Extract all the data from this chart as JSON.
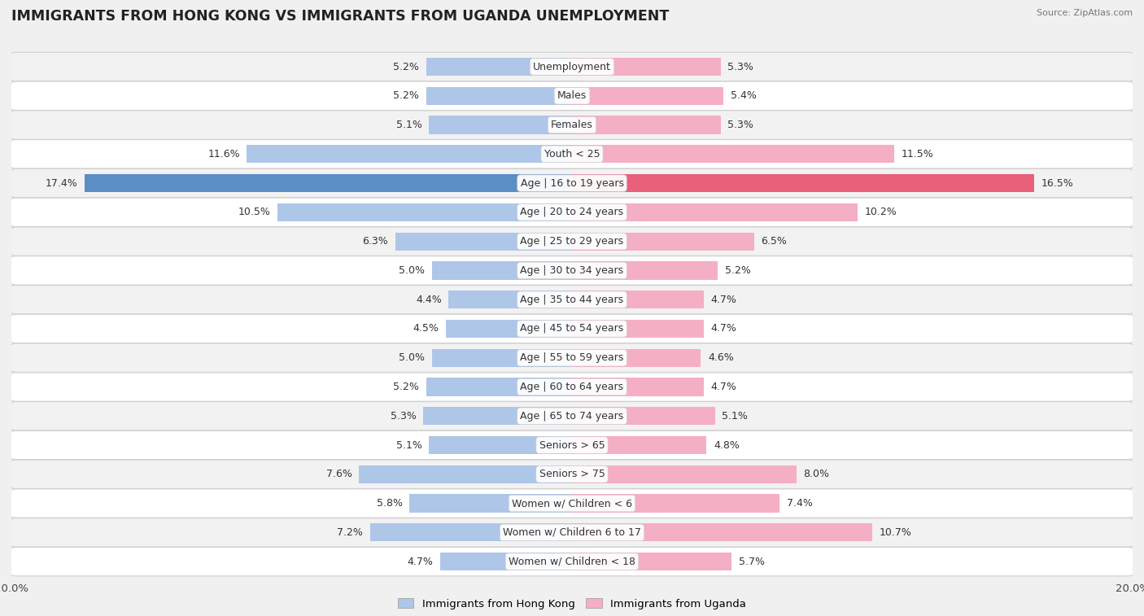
{
  "title": "IMMIGRANTS FROM HONG KONG VS IMMIGRANTS FROM UGANDA UNEMPLOYMENT",
  "source": "Source: ZipAtlas.com",
  "categories": [
    "Unemployment",
    "Males",
    "Females",
    "Youth < 25",
    "Age | 16 to 19 years",
    "Age | 20 to 24 years",
    "Age | 25 to 29 years",
    "Age | 30 to 34 years",
    "Age | 35 to 44 years",
    "Age | 45 to 54 years",
    "Age | 55 to 59 years",
    "Age | 60 to 64 years",
    "Age | 65 to 74 years",
    "Seniors > 65",
    "Seniors > 75",
    "Women w/ Children < 6",
    "Women w/ Children 6 to 17",
    "Women w/ Children < 18"
  ],
  "left_values": [
    5.2,
    5.2,
    5.1,
    11.6,
    17.4,
    10.5,
    6.3,
    5.0,
    4.4,
    4.5,
    5.0,
    5.2,
    5.3,
    5.1,
    7.6,
    5.8,
    7.2,
    4.7
  ],
  "right_values": [
    5.3,
    5.4,
    5.3,
    11.5,
    16.5,
    10.2,
    6.5,
    5.2,
    4.7,
    4.7,
    4.6,
    4.7,
    5.1,
    4.8,
    8.0,
    7.4,
    10.7,
    5.7
  ],
  "left_color": "#aec6e8",
  "right_color": "#f5afc4",
  "highlight_left_color": "#5b8ec4",
  "highlight_right_color": "#e8607a",
  "row_colors": [
    "#f2f2f2",
    "#ffffff"
  ],
  "axis_max": 20.0,
  "legend_left": "Immigrants from Hong Kong",
  "legend_right": "Immigrants from Uganda",
  "bar_height": 0.62,
  "title_fontsize": 12.5,
  "label_fontsize": 9.0,
  "value_fontsize": 9.0,
  "highlight_index": 4
}
